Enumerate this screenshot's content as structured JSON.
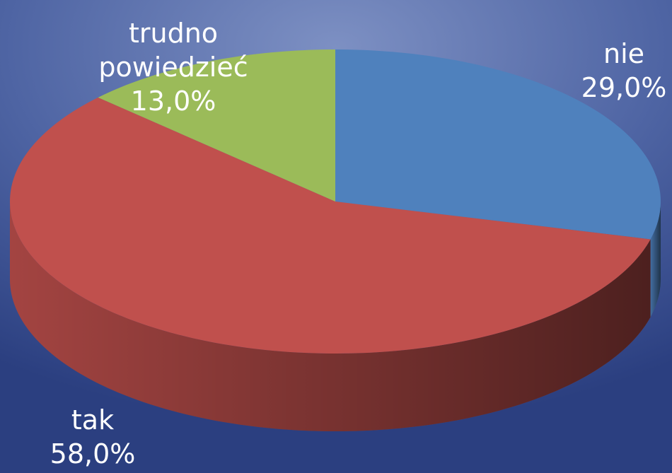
{
  "chart_data": {
    "type": "pie",
    "categories": [
      "nie",
      "tak",
      "trudno powiedzieć"
    ],
    "values": [
      29,
      58,
      13
    ],
    "value_labels": [
      "29,0%",
      "58,0%",
      "13,0%"
    ],
    "colors": [
      "#4f81bd",
      "#c0504d",
      "#9bbb59"
    ]
  }
}
